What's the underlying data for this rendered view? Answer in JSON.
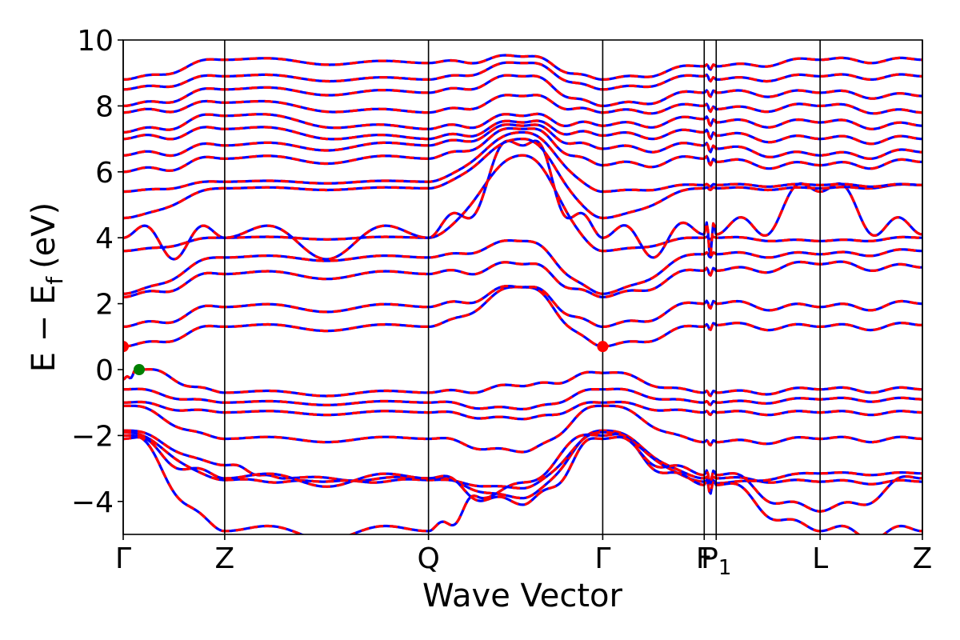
{
  "chart_data": {
    "type": "line",
    "title": "",
    "xlabel": "Wave Vector",
    "ylabel": "E − E",
    "ylabel_subscript": "f",
    "ylabel_unit": "(eV)",
    "ylim": [
      -5,
      10
    ],
    "yticks": [
      {
        "value": -4,
        "label": "−4"
      },
      {
        "value": -2,
        "label": "−2"
      },
      {
        "value": 0,
        "label": "0"
      },
      {
        "value": 2,
        "label": "2"
      },
      {
        "value": 4,
        "label": "4"
      },
      {
        "value": 6,
        "label": "6"
      },
      {
        "value": 8,
        "label": "8"
      },
      {
        "value": 10,
        "label": "10"
      }
    ],
    "xlim": [
      0,
      1
    ],
    "kpoints": [
      {
        "label": "Γ",
        "x": 0.0
      },
      {
        "label": "Z",
        "x": 0.127
      },
      {
        "label": "Q",
        "x": 0.382
      },
      {
        "label": "Γ",
        "x": 0.6
      },
      {
        "label": "F",
        "x": 0.727
      },
      {
        "label": "P",
        "sub": "1",
        "x": 0.742
      },
      {
        "label": "L",
        "x": 0.872
      },
      {
        "label": "Z",
        "x": 1.0
      }
    ],
    "series_styles": [
      {
        "style": "solid",
        "color": "#0000ff"
      },
      {
        "style": "dashed",
        "color": "#ff0000"
      }
    ],
    "markers": [
      {
        "kind": "VBM",
        "x": 0.02,
        "y": 0.0,
        "color": "#008000"
      },
      {
        "kind": "CBM",
        "x": 0.0,
        "y": 0.7,
        "color": "#ff0000"
      },
      {
        "kind": "CBM",
        "x": 0.6,
        "y": 0.7,
        "color": "#ff0000"
      }
    ],
    "bands": [
      {
        "nodes": [
          [
            0,
            -1.85
          ],
          [
            0.127,
            -2.9
          ],
          [
            0.2,
            -3.3
          ],
          [
            0.382,
            -3.3
          ],
          [
            0.5,
            -3.9
          ],
          [
            0.6,
            -1.85
          ],
          [
            0.727,
            -3.3
          ],
          [
            0.742,
            -3.3
          ],
          [
            0.872,
            -3.4
          ],
          [
            1,
            -3.4
          ]
        ],
        "amp": 0.15
      },
      {
        "nodes": [
          [
            0,
            -1.9
          ],
          [
            0.127,
            -3.35
          ],
          [
            0.25,
            -3.4
          ],
          [
            0.382,
            -3.35
          ],
          [
            0.5,
            -3.6
          ],
          [
            0.6,
            -1.9
          ],
          [
            0.727,
            -3.4
          ],
          [
            0.742,
            -3.45
          ],
          [
            0.872,
            -3.15
          ],
          [
            1,
            -3.15
          ]
        ],
        "amp": 0.1
      },
      {
        "nodes": [
          [
            0,
            -2.0
          ],
          [
            0.127,
            -4.9
          ],
          [
            0.382,
            -4.9
          ],
          [
            0.45,
            -3.9
          ],
          [
            0.6,
            -2.0
          ],
          [
            0.727,
            -3.5
          ],
          [
            0.742,
            -3.5
          ],
          [
            0.872,
            -4.9
          ],
          [
            1,
            -4.9
          ]
        ],
        "amp": 0.55
      },
      {
        "nodes": [
          [
            0,
            -2.1
          ],
          [
            0.127,
            -3.3
          ],
          [
            0.382,
            -3.3
          ],
          [
            0.5,
            -4.1
          ],
          [
            0.6,
            -2.1
          ],
          [
            0.727,
            -3.2
          ],
          [
            0.742,
            -3.2
          ],
          [
            0.872,
            -4.3
          ],
          [
            1,
            -3.3
          ]
        ],
        "amp": 0.5
      },
      {
        "nodes": [
          [
            0,
            -1.1
          ],
          [
            0.127,
            -2.1
          ],
          [
            0.382,
            -2.1
          ],
          [
            0.5,
            -2.5
          ],
          [
            0.6,
            -1.1
          ],
          [
            0.727,
            -2.2
          ],
          [
            0.742,
            -2.2
          ],
          [
            0.872,
            -2.1
          ],
          [
            1,
            -2.1
          ]
        ],
        "amp": 0.2
      },
      {
        "nodes": [
          [
            0,
            -1.0
          ],
          [
            0.127,
            -1.3
          ],
          [
            0.382,
            -1.3
          ],
          [
            0.5,
            -1.5
          ],
          [
            0.6,
            -1.0
          ],
          [
            0.727,
            -1.3
          ],
          [
            0.742,
            -1.3
          ],
          [
            0.872,
            -1.3
          ],
          [
            1,
            -1.3
          ]
        ],
        "amp": 0.15
      },
      {
        "nodes": [
          [
            0,
            -0.6
          ],
          [
            0.127,
            -1.0
          ],
          [
            0.382,
            -1.0
          ],
          [
            0.5,
            -1.2
          ],
          [
            0.6,
            -0.6
          ],
          [
            0.727,
            -1.0
          ],
          [
            0.742,
            -1.0
          ],
          [
            0.872,
            -0.9
          ],
          [
            1,
            -0.9
          ]
        ],
        "amp": 0.15
      },
      {
        "nodes": [
          [
            0,
            -0.3
          ],
          [
            0.02,
            0.0
          ],
          [
            0.127,
            -0.7
          ],
          [
            0.382,
            -0.7
          ],
          [
            0.5,
            -0.5
          ],
          [
            0.6,
            -0.1
          ],
          [
            0.727,
            -0.7
          ],
          [
            0.742,
            -0.7
          ],
          [
            0.872,
            -0.6
          ],
          [
            1,
            -0.6
          ]
        ],
        "amp": 0.2
      },
      {
        "nodes": [
          [
            0,
            0.7
          ],
          [
            0.127,
            1.3
          ],
          [
            0.382,
            1.3
          ],
          [
            0.5,
            2.5
          ],
          [
            0.6,
            0.7
          ],
          [
            0.727,
            1.3
          ],
          [
            0.742,
            1.35
          ],
          [
            0.872,
            1.3
          ],
          [
            1,
            1.35
          ]
        ],
        "amp": 0.25
      },
      {
        "nodes": [
          [
            0,
            1.3
          ],
          [
            0.127,
            1.9
          ],
          [
            0.382,
            1.9
          ],
          [
            0.5,
            2.5
          ],
          [
            0.6,
            1.3
          ],
          [
            0.727,
            2.0
          ],
          [
            0.742,
            2.0
          ],
          [
            0.872,
            1.9
          ],
          [
            1,
            2.0
          ]
        ],
        "amp": 0.3
      },
      {
        "nodes": [
          [
            0,
            2.2
          ],
          [
            0.127,
            2.9
          ],
          [
            0.382,
            2.9
          ],
          [
            0.5,
            3.2
          ],
          [
            0.6,
            2.2
          ],
          [
            0.727,
            3.0
          ],
          [
            0.742,
            3.0
          ],
          [
            0.872,
            3.2
          ],
          [
            1,
            3.1
          ]
        ],
        "amp": 0.3
      },
      {
        "nodes": [
          [
            0,
            2.3
          ],
          [
            0.127,
            3.4
          ],
          [
            0.382,
            3.4
          ],
          [
            0.5,
            3.9
          ],
          [
            0.6,
            2.3
          ],
          [
            0.727,
            3.5
          ],
          [
            0.742,
            3.5
          ],
          [
            0.872,
            3.5
          ],
          [
            1,
            3.6
          ]
        ],
        "amp": 0.2
      },
      {
        "nodes": [
          [
            0,
            3.6
          ],
          [
            0.127,
            4.0
          ],
          [
            0.382,
            4.0
          ],
          [
            0.5,
            6.5
          ],
          [
            0.6,
            3.6
          ],
          [
            0.727,
            4.0
          ],
          [
            0.742,
            4.0
          ],
          [
            0.872,
            3.9
          ],
          [
            1,
            4.0
          ]
        ],
        "amp": 0.1
      },
      {
        "nodes": [
          [
            0,
            4.0
          ],
          [
            0.127,
            4.0
          ],
          [
            0.382,
            4.0
          ],
          [
            0.5,
            6.8
          ],
          [
            0.6,
            4.0
          ],
          [
            0.727,
            4.1
          ],
          [
            0.742,
            4.1
          ],
          [
            0.872,
            5.4
          ],
          [
            1,
            4.1
          ]
        ],
        "amp": 1.3
      },
      {
        "nodes": [
          [
            0,
            4.6
          ],
          [
            0.127,
            5.5
          ],
          [
            0.382,
            5.5
          ],
          [
            0.5,
            7.0
          ],
          [
            0.6,
            4.6
          ],
          [
            0.727,
            5.5
          ],
          [
            0.742,
            5.5
          ],
          [
            0.872,
            5.5
          ],
          [
            1,
            5.6
          ]
        ],
        "amp": 0.1
      },
      {
        "nodes": [
          [
            0,
            5.4
          ],
          [
            0.127,
            5.7
          ],
          [
            0.382,
            5.7
          ],
          [
            0.5,
            7.2
          ],
          [
            0.6,
            5.4
          ],
          [
            0.727,
            5.6
          ],
          [
            0.742,
            5.6
          ],
          [
            0.872,
            5.6
          ],
          [
            1,
            5.6
          ]
        ],
        "amp": 0.1
      },
      {
        "nodes": [
          [
            0,
            6.0
          ],
          [
            0.127,
            6.4
          ],
          [
            0.382,
            6.4
          ],
          [
            0.5,
            7.3
          ],
          [
            0.6,
            6.2
          ],
          [
            0.727,
            6.4
          ],
          [
            0.742,
            6.3
          ],
          [
            0.872,
            6.2
          ],
          [
            1,
            6.3
          ]
        ],
        "amp": 0.3
      },
      {
        "nodes": [
          [
            0,
            6.5
          ],
          [
            0.127,
            6.8
          ],
          [
            0.382,
            6.8
          ],
          [
            0.5,
            7.4
          ],
          [
            0.6,
            6.7
          ],
          [
            0.727,
            6.8
          ],
          [
            0.742,
            6.7
          ],
          [
            0.872,
            6.5
          ],
          [
            1,
            6.6
          ]
        ],
        "amp": 0.3
      },
      {
        "nodes": [
          [
            0,
            7.0
          ],
          [
            0.127,
            7.3
          ],
          [
            0.382,
            7.0
          ],
          [
            0.5,
            7.5
          ],
          [
            0.6,
            7.1
          ],
          [
            0.727,
            7.2
          ],
          [
            0.742,
            7.1
          ],
          [
            0.872,
            7.0
          ],
          [
            1,
            7.0
          ]
        ],
        "amp": 0.3
      },
      {
        "nodes": [
          [
            0,
            7.2
          ],
          [
            0.127,
            7.7
          ],
          [
            0.382,
            7.3
          ],
          [
            0.5,
            7.7
          ],
          [
            0.6,
            7.4
          ],
          [
            0.727,
            7.6
          ],
          [
            0.742,
            7.5
          ],
          [
            0.872,
            7.5
          ],
          [
            1,
            7.4
          ]
        ],
        "amp": 0.3
      },
      {
        "nodes": [
          [
            0,
            7.8
          ],
          [
            0.127,
            8.1
          ],
          [
            0.382,
            7.8
          ],
          [
            0.5,
            8.3
          ],
          [
            0.6,
            7.8
          ],
          [
            0.727,
            8.0
          ],
          [
            0.742,
            7.9
          ],
          [
            0.872,
            8.0
          ],
          [
            1,
            7.8
          ]
        ],
        "amp": 0.25
      },
      {
        "nodes": [
          [
            0,
            8.0
          ],
          [
            0.127,
            8.5
          ],
          [
            0.382,
            8.4
          ],
          [
            0.5,
            8.9
          ],
          [
            0.6,
            8.0
          ],
          [
            0.727,
            8.4
          ],
          [
            0.742,
            8.4
          ],
          [
            0.872,
            8.4
          ],
          [
            1,
            8.3
          ]
        ],
        "amp": 0.25
      },
      {
        "nodes": [
          [
            0,
            8.5
          ],
          [
            0.127,
            8.9
          ],
          [
            0.382,
            8.8
          ],
          [
            0.5,
            9.3
          ],
          [
            0.6,
            8.5
          ],
          [
            0.727,
            8.9
          ],
          [
            0.742,
            8.8
          ],
          [
            0.872,
            8.9
          ],
          [
            1,
            8.9
          ]
        ],
        "amp": 0.2
      },
      {
        "nodes": [
          [
            0,
            8.8
          ],
          [
            0.127,
            9.4
          ],
          [
            0.382,
            9.3
          ],
          [
            0.5,
            9.5
          ],
          [
            0.6,
            8.8
          ],
          [
            0.727,
            9.2
          ],
          [
            0.742,
            9.2
          ],
          [
            0.872,
            9.4
          ],
          [
            1,
            9.4
          ]
        ],
        "amp": 0.2
      }
    ]
  }
}
